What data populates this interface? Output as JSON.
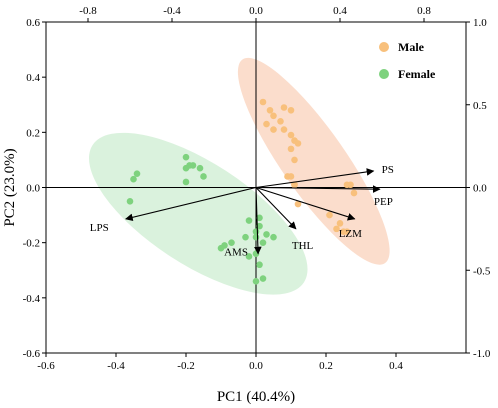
{
  "chart_data": {
    "type": "scatter",
    "subtype": "pca-biplot",
    "title": "",
    "xlabel": "PC1 (40.4%)",
    "ylabel": "PC2 (23.0%)",
    "xlim": [
      -0.6,
      0.6
    ],
    "ylim": [
      -0.6,
      0.6
    ],
    "x_ticks": [
      -0.6,
      -0.4,
      -0.2,
      0.0,
      0.2,
      0.4
    ],
    "x_tick_labels": [
      "-0.6",
      "-0.4",
      "-0.2",
      "0.0",
      "0.2",
      "0.4"
    ],
    "y_ticks": [
      -0.6,
      -0.4,
      -0.2,
      0.0,
      0.2,
      0.4,
      0.6
    ],
    "y_tick_labels": [
      "-0.6",
      "-0.4",
      "-0.2",
      "0.0",
      "0.2",
      "0.4",
      "0.6"
    ],
    "top_xlim": [
      -1.0,
      1.0
    ],
    "top_ticks": [
      -0.8,
      -0.4,
      0.0,
      0.4,
      0.8
    ],
    "top_tick_labels": [
      "-0.8",
      "-0.4",
      "0.0",
      "0.4",
      "0.8"
    ],
    "right_ylim": [
      -1.0,
      1.0
    ],
    "right_ticks": [
      -1.0,
      -0.5,
      0.0,
      0.5,
      1.0
    ],
    "right_tick_labels": [
      "-1.0",
      "-0.5",
      "0.0",
      "0.5",
      "1.0"
    ],
    "grid": false,
    "legend_position": "top-right",
    "series": [
      {
        "name": "Male",
        "color": "#f8c07c",
        "ellipse_color": "#fbd9c6",
        "points": [
          [
            0.02,
            0.31
          ],
          [
            0.04,
            0.28
          ],
          [
            0.08,
            0.29
          ],
          [
            0.05,
            0.26
          ],
          [
            0.03,
            0.23
          ],
          [
            0.07,
            0.24
          ],
          [
            0.1,
            0.28
          ],
          [
            0.05,
            0.21
          ],
          [
            0.08,
            0.21
          ],
          [
            0.1,
            0.19
          ],
          [
            0.11,
            0.17
          ],
          [
            0.12,
            0.16
          ],
          [
            0.1,
            0.14
          ],
          [
            0.11,
            0.1
          ],
          [
            0.09,
            0.04
          ],
          [
            0.1,
            0.04
          ],
          [
            0.11,
            0.01
          ],
          [
            0.27,
            0.01
          ],
          [
            0.28,
            -0.02
          ],
          [
            0.26,
            0.01
          ],
          [
            0.21,
            -0.1
          ],
          [
            0.24,
            -0.13
          ],
          [
            0.26,
            -0.16
          ],
          [
            0.25,
            -0.16
          ],
          [
            0.23,
            -0.15
          ],
          [
            0.11,
            0.01
          ],
          [
            0.12,
            -0.06
          ]
        ]
      },
      {
        "name": "Female",
        "color": "#7ed27e",
        "ellipse_color": "#d6f1d9",
        "points": [
          [
            -0.2,
            0.11
          ],
          [
            -0.19,
            0.08
          ],
          [
            -0.18,
            0.08
          ],
          [
            -0.2,
            0.07
          ],
          [
            -0.16,
            0.07
          ],
          [
            -0.15,
            0.04
          ],
          [
            -0.2,
            0.02
          ],
          [
            -0.34,
            0.05
          ],
          [
            -0.35,
            0.03
          ],
          [
            -0.36,
            -0.05
          ],
          [
            -0.02,
            -0.12
          ],
          [
            0.01,
            -0.11
          ],
          [
            0.01,
            -0.14
          ],
          [
            0.0,
            -0.16
          ],
          [
            0.03,
            -0.17
          ],
          [
            0.05,
            -0.18
          ],
          [
            0.0,
            -0.18
          ],
          [
            -0.03,
            -0.18
          ],
          [
            0.02,
            -0.2
          ],
          [
            0.0,
            -0.24
          ],
          [
            -0.09,
            -0.21
          ],
          [
            -0.1,
            -0.22
          ],
          [
            -0.07,
            -0.2
          ],
          [
            -0.02,
            -0.25
          ],
          [
            0.01,
            -0.28
          ],
          [
            0.02,
            -0.33
          ],
          [
            0.0,
            -0.34
          ]
        ]
      }
    ],
    "ellipses": [
      {
        "series": "Male",
        "center": [
          0.165,
          0.095
        ],
        "semi_major": 0.355,
        "semi_minor": 0.115,
        "angle_deg": -55
      },
      {
        "series": "Female",
        "center": [
          -0.165,
          -0.095
        ],
        "semi_major": 0.36,
        "semi_minor": 0.185,
        "angle_deg": -33
      }
    ],
    "loadings": [
      {
        "label": "PS",
        "x": 0.56,
        "y": 0.1,
        "label_offset": [
          8,
          2
        ]
      },
      {
        "label": "PEP",
        "x": 0.59,
        "y": -0.01,
        "label_offset": [
          -6,
          16
        ]
      },
      {
        "label": "LZM",
        "x": 0.47,
        "y": -0.19,
        "label_offset": [
          -16,
          18
        ]
      },
      {
        "label": "THL",
        "x": 0.19,
        "y": -0.25,
        "label_offset": [
          -4,
          20
        ]
      },
      {
        "label": "AMS",
        "x": 0.01,
        "y": -0.4,
        "label_offset": [
          -34,
          2
        ]
      },
      {
        "label": "LPS",
        "x": -0.62,
        "y": -0.19,
        "label_offset": [
          -36,
          12
        ]
      }
    ]
  }
}
